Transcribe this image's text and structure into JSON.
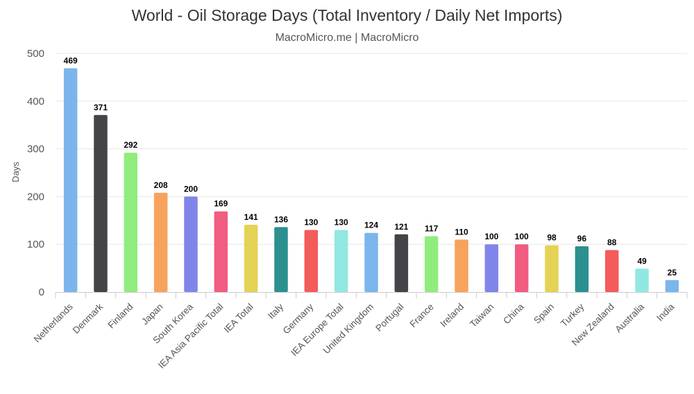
{
  "chart_data": {
    "type": "bar",
    "title": "World - Oil Storage Days (Total Inventory / Daily Net Imports)",
    "subtitle": "MacroMicro.me | MacroMicro",
    "xlabel": "",
    "ylabel": "Days",
    "ylim": [
      0,
      500
    ],
    "yticks": [
      "0",
      "100",
      "200",
      "300",
      "400",
      "500"
    ],
    "grid": true,
    "categories": [
      "Netherlands",
      "Denmark",
      "Finland",
      "Japan",
      "South Korea",
      "IEA Asia Pacific Total",
      "IEA Total",
      "Italy",
      "Germany",
      "IEA Europe Total",
      "United Kingdom",
      "Portugal",
      "France",
      "Ireland",
      "Taiwan",
      "China",
      "Spain",
      "Turkey",
      "New Zealand",
      "Australia",
      "India"
    ],
    "values": [
      469,
      371,
      292,
      208,
      200,
      169,
      141,
      136,
      130,
      130,
      124,
      121,
      117,
      110,
      100,
      100,
      98,
      96,
      88,
      49,
      25
    ],
    "value_labels": [
      "469",
      "371",
      "292",
      "208",
      "200",
      "169",
      "141",
      "136",
      "130",
      "130",
      "124",
      "121",
      "117",
      "110",
      "100",
      "100",
      "98",
      "96",
      "88",
      "49",
      "25"
    ],
    "colors": [
      "#7cb5ec",
      "#434348",
      "#90ed7d",
      "#f7a35c",
      "#8085e9",
      "#f15c80",
      "#e4d354",
      "#2b908f",
      "#f45b5b",
      "#91e8e1",
      "#7cb5ec",
      "#434348",
      "#90ed7d",
      "#f7a35c",
      "#8085e9",
      "#f15c80",
      "#e4d354",
      "#2b908f",
      "#f45b5b",
      "#91e8e1",
      "#7cb5ec"
    ]
  }
}
